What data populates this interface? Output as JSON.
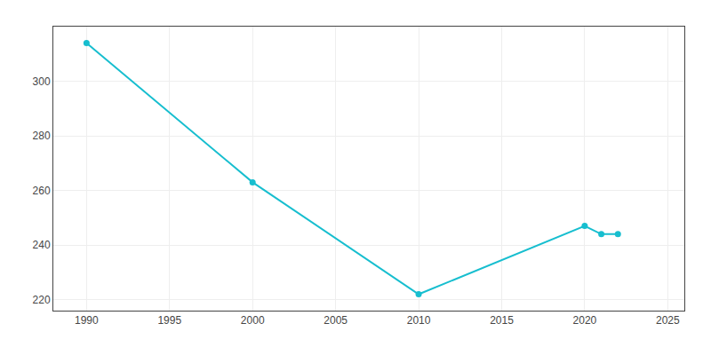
{
  "chart_data": {
    "type": "line",
    "x": [
      1990,
      2000,
      2010,
      2020,
      2021,
      2022
    ],
    "values": [
      314,
      263,
      222,
      247,
      244,
      244
    ],
    "color": "#17BECF",
    "marker": "circle",
    "xlim": [
      1988,
      2026
    ],
    "ylim": [
      216,
      320
    ],
    "xticks": [
      1990,
      1995,
      2000,
      2005,
      2010,
      2015,
      2020,
      2025
    ],
    "yticks": [
      220,
      240,
      260,
      280,
      300
    ],
    "grid": true
  }
}
